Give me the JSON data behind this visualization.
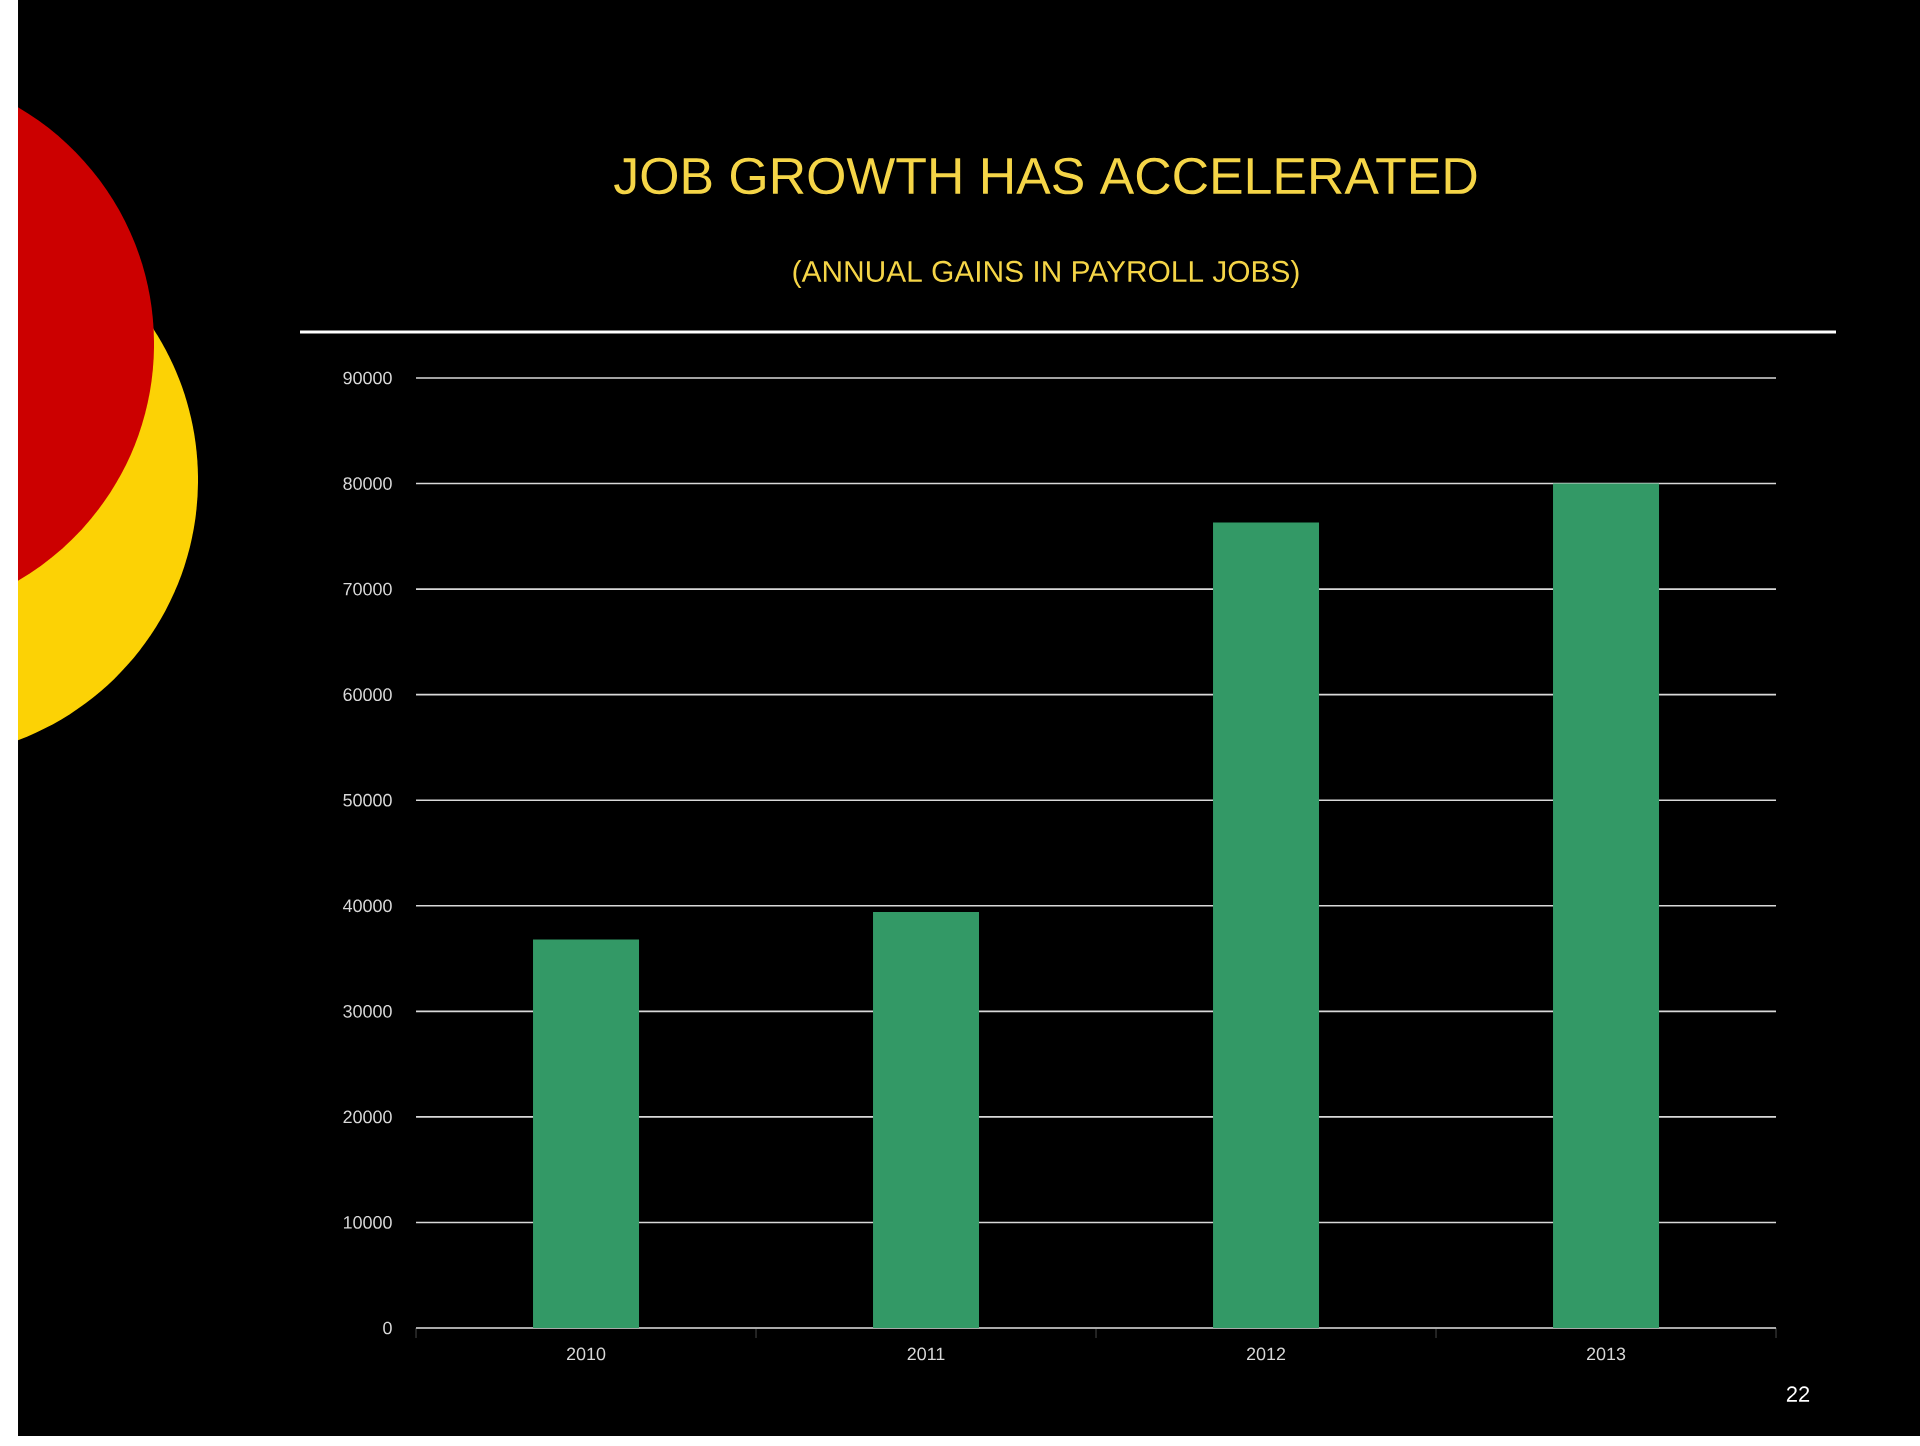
{
  "chart_data": {
    "type": "bar",
    "title": "JOB GROWTH HAS ACCELERATED",
    "subtitle": "(ANNUAL GAINS IN PAYROLL JOBS)",
    "categories": [
      "2010",
      "2011",
      "2012",
      "2013"
    ],
    "values": [
      36800,
      39400,
      76300,
      80000
    ],
    "color": "#339966",
    "ylim": [
      0,
      90000
    ],
    "yticks": [
      0,
      10000,
      20000,
      30000,
      40000,
      50000,
      60000,
      70000,
      80000,
      90000
    ],
    "grid": "y",
    "annotations": [
      "22"
    ]
  }
}
